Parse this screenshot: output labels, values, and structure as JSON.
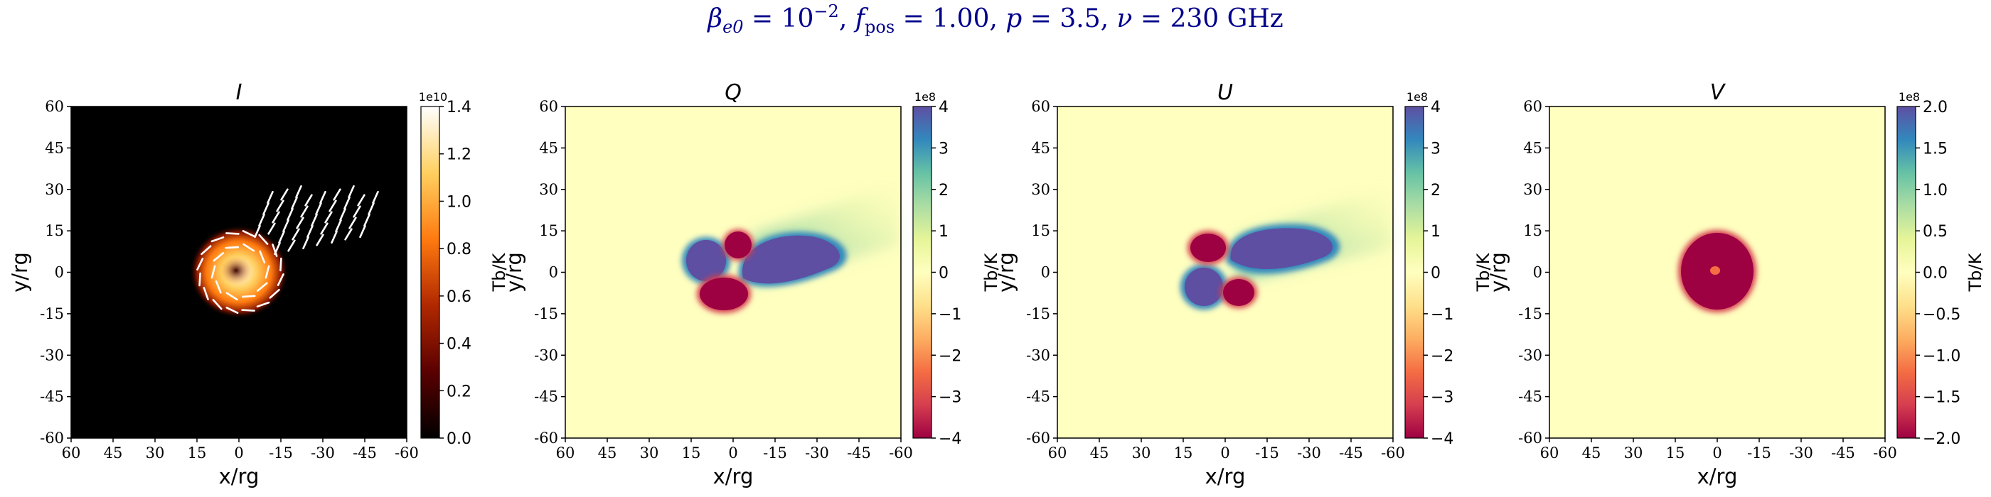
{
  "figure": {
    "title_parts": {
      "beta": "β",
      "beta_sub": "e0",
      "eq1": " = 10",
      "exp": "−2",
      "comma1": ", ",
      "f": "f",
      "f_sub": "pos",
      "eq2": " = 1.00, ",
      "p": "p",
      "eq3": " = 3.5, ",
      "nu": "ν",
      "eq4": " = 230 GHz"
    }
  },
  "chart_data": [
    {
      "type": "heatmap",
      "title": "I",
      "xlabel": "x/rg",
      "ylabel": "y/rg",
      "xlim": [
        60,
        -60
      ],
      "ylim": [
        -60,
        60
      ],
      "xticks": [
        "60",
        "45",
        "30",
        "15",
        "0",
        "-15",
        "-30",
        "-45",
        "-60"
      ],
      "yticks": [
        "60",
        "45",
        "30",
        "15",
        "0",
        "-15",
        "-30",
        "-45",
        "-60"
      ],
      "colorbar": {
        "label": "Tb/K",
        "scale_label": "1e10",
        "range": [
          0.0,
          1.4
        ],
        "ticks": [
          "1.4",
          "1.2",
          "1.0",
          "0.8",
          "0.6",
          "0.4",
          "0.2",
          "0.0"
        ],
        "colormap": "afmhot",
        "colors": [
          "#000000",
          "#5a0000",
          "#b02800",
          "#ff7a10",
          "#ffd060",
          "#ffffff"
        ]
      },
      "features": {
        "background": "#000000",
        "emission_center": [
          2,
          1
        ],
        "ring_radius_rg": 8,
        "polarization_ticks": "white"
      }
    },
    {
      "type": "heatmap",
      "title": "Q",
      "xlabel": "x/rg",
      "ylabel": "y/rg",
      "xlim": [
        60,
        -60
      ],
      "ylim": [
        -60,
        60
      ],
      "xticks": [
        "60",
        "45",
        "30",
        "15",
        "0",
        "-15",
        "-30",
        "-45",
        "-60"
      ],
      "yticks": [
        "60",
        "45",
        "30",
        "15",
        "0",
        "-15",
        "-30",
        "-45",
        "-60"
      ],
      "colorbar": {
        "label": "Tb/K",
        "scale_label": "1e8",
        "range": [
          -4,
          4
        ],
        "ticks": [
          "4",
          "3",
          "2",
          "1",
          "0",
          "−1",
          "−2",
          "−3",
          "−4"
        ],
        "colormap": "Spectral",
        "colors": [
          "#9e0142",
          "#d53e4f",
          "#f46d43",
          "#fdae61",
          "#fee08b",
          "#ffffbf",
          "#e6f598",
          "#abdda4",
          "#66c2a5",
          "#3288bd",
          "#5e4fa2"
        ]
      }
    },
    {
      "type": "heatmap",
      "title": "U",
      "xlabel": "x/rg",
      "ylabel": "y/rg",
      "xlim": [
        60,
        -60
      ],
      "ylim": [
        -60,
        60
      ],
      "xticks": [
        "60",
        "45",
        "30",
        "15",
        "0",
        "-15",
        "-30",
        "-45",
        "-60"
      ],
      "yticks": [
        "60",
        "45",
        "30",
        "15",
        "0",
        "-15",
        "-30",
        "-45",
        "-60"
      ],
      "colorbar": {
        "label": "Tb/K",
        "scale_label": "1e8",
        "range": [
          -4,
          4
        ],
        "ticks": [
          "4",
          "3",
          "2",
          "1",
          "0",
          "−1",
          "−2",
          "−3",
          "−4"
        ],
        "colormap": "Spectral",
        "colors": [
          "#9e0142",
          "#d53e4f",
          "#f46d43",
          "#fdae61",
          "#fee08b",
          "#ffffbf",
          "#e6f598",
          "#abdda4",
          "#66c2a5",
          "#3288bd",
          "#5e4fa2"
        ]
      }
    },
    {
      "type": "heatmap",
      "title": "V",
      "xlabel": "x/rg",
      "ylabel": "y/rg",
      "xlim": [
        60,
        -60
      ],
      "ylim": [
        -60,
        60
      ],
      "xticks": [
        "60",
        "45",
        "30",
        "15",
        "0",
        "-15",
        "-30",
        "-45",
        "-60"
      ],
      "yticks": [
        "60",
        "45",
        "30",
        "15",
        "0",
        "-15",
        "-30",
        "-45",
        "-60"
      ],
      "colorbar": {
        "label": "Tb/K",
        "scale_label": "1e8",
        "range": [
          -2.0,
          2.0
        ],
        "ticks": [
          "2.0",
          "1.5",
          "1.0",
          "0.5",
          "0.0",
          "−0.5",
          "−1.0",
          "−1.5",
          "−2.0"
        ],
        "colormap": "Spectral",
        "colors": [
          "#9e0142",
          "#d53e4f",
          "#f46d43",
          "#fdae61",
          "#fee08b",
          "#ffffbf",
          "#e6f598",
          "#abdda4",
          "#66c2a5",
          "#3288bd",
          "#5e4fa2"
        ]
      }
    }
  ]
}
